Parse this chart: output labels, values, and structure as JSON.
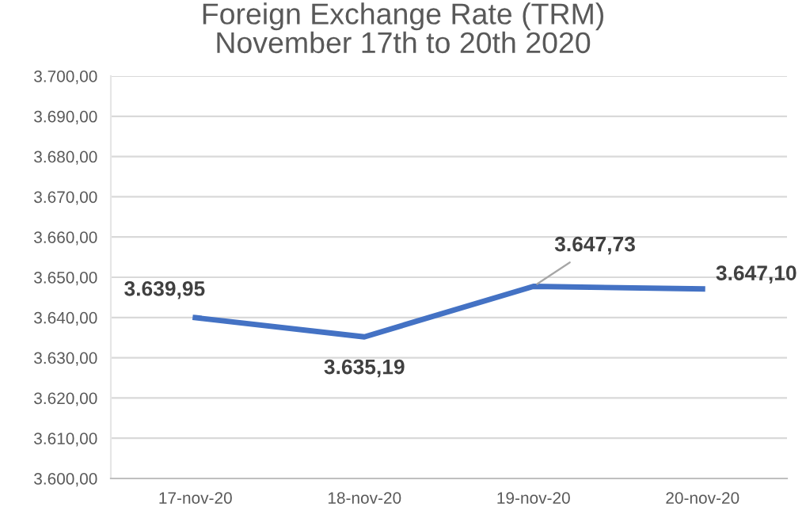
{
  "chart_data": {
    "type": "line",
    "title": "Foreign Exchange Rate (TRM)\nNovember 17th to 20th 2020",
    "categories": [
      "17-nov-20",
      "18-nov-20",
      "19-nov-20",
      "20-nov-20"
    ],
    "series": [
      {
        "color": "#4472c4",
        "values": [
          3639.95,
          3635.19,
          3647.73,
          3647.1
        ],
        "value_labels": [
          "3.639,95",
          "3.635,19",
          "3.647,73",
          "3.647,10"
        ]
      }
    ],
    "ylim": [
      3600,
      3700
    ],
    "yticks": [
      {
        "value": 3600,
        "label": "3.600,00"
      },
      {
        "value": 3610,
        "label": "3.610,00"
      },
      {
        "value": 3620,
        "label": "3.620,00"
      },
      {
        "value": 3630,
        "label": "3.630,00"
      },
      {
        "value": 3640,
        "label": "3.640,00"
      },
      {
        "value": 3650,
        "label": "3.650,00"
      },
      {
        "value": 3660,
        "label": "3.660,00"
      },
      {
        "value": 3670,
        "label": "3.670,00"
      },
      {
        "value": 3680,
        "label": "3.680,00"
      },
      {
        "value": 3690,
        "label": "3.690,00"
      },
      {
        "value": 3700,
        "label": "3.700,00"
      }
    ],
    "grid": "y",
    "legend": false,
    "marker": "none",
    "line_style": "solid"
  }
}
